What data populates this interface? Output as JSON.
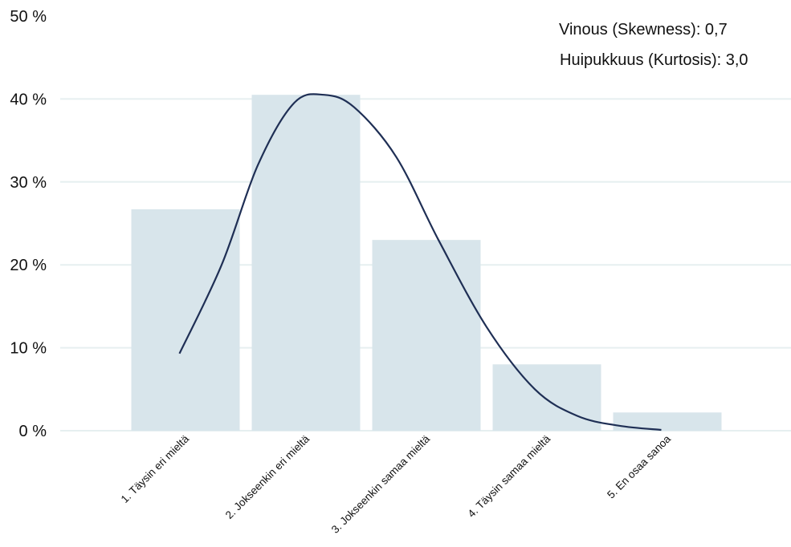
{
  "chart_data": {
    "type": "bar",
    "categories": [
      "1. Täysin eri mieltä",
      "2. Jokseenkin eri mieltä",
      "3. Jokseenkin samaa mieltä",
      "4. Täysin samaa mieltä",
      "5. En osaa sanoa"
    ],
    "values": [
      26.7,
      40.5,
      23.0,
      8.0,
      2.2
    ],
    "ylim": [
      0,
      50
    ],
    "yticks": [
      0,
      10,
      20,
      30,
      40,
      50
    ],
    "ytick_labels": [
      "0 %",
      "10 %",
      "20 %",
      "30 %",
      "40 %",
      "50 %"
    ],
    "grid": true,
    "colors": {
      "bar": "#d8e5eb",
      "curve": "#1f2f55",
      "grid": "#e6eff0"
    },
    "curve": {
      "type": "normal-fit",
      "points": [
        [
          0.95,
          9.3
        ],
        [
          1.3,
          20.0
        ],
        [
          1.6,
          32.0
        ],
        [
          1.9,
          39.5
        ],
        [
          2.15,
          40.5
        ],
        [
          2.4,
          39.0
        ],
        [
          2.75,
          33.0
        ],
        [
          3.1,
          23.0
        ],
        [
          3.5,
          12.5
        ],
        [
          3.9,
          5.0
        ],
        [
          4.25,
          1.8
        ],
        [
          4.6,
          0.6
        ],
        [
          4.95,
          0.1
        ]
      ]
    },
    "annotations": [
      "Vinous (Skewness): 0,7",
      "Huipukkuus (Kurtosis): 3,0"
    ]
  }
}
